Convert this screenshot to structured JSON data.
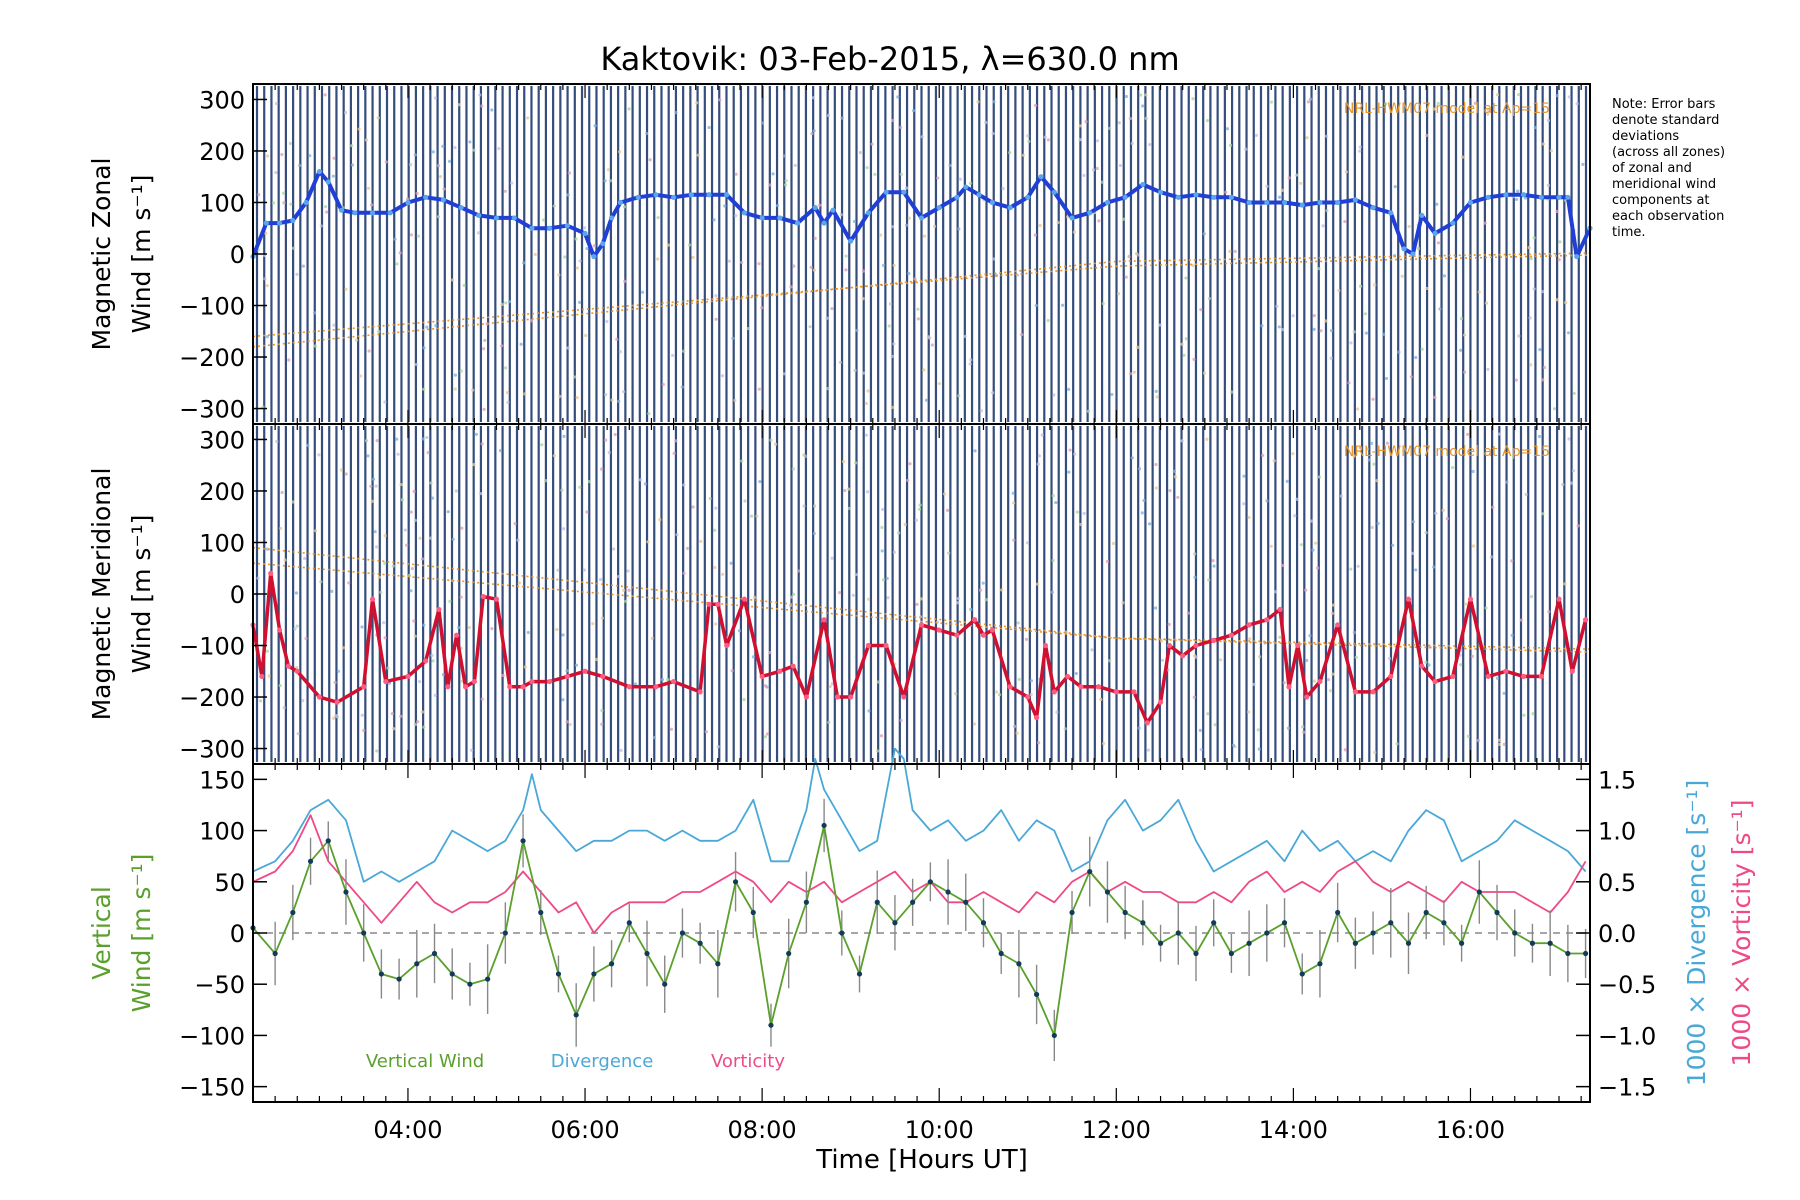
{
  "title": "Kaktovik: 03-Feb-2015, λ=630.0 nm",
  "note_lines": [
    "Note: Error bars",
    "denote standard",
    "deviations",
    "(across all zones)",
    "of zonal and",
    "meridional wind",
    "components at",
    "each observation",
    "time."
  ],
  "model_label": "NRL-HWM07 model at Ap=15",
  "colors": {
    "zonal": "#1f3fd6",
    "zonal_light": "#5aa6ee",
    "meridional": "#d01030",
    "meridional_light": "#ff5c82",
    "vertical": "#5aa02c",
    "divergence": "#4aa8d8",
    "vorticity": "#ee4a88",
    "stripes": "#1f3a6e",
    "model": "#e8962a"
  },
  "chart_data": [
    {
      "type": "line",
      "panel": "zonal",
      "ylabel_lines": [
        "Magnetic Zonal",
        "Wind [m s⁻¹]"
      ],
      "ylim": [
        -330,
        330
      ],
      "yticks": [
        "300",
        "200",
        "100",
        "0",
        "−100",
        "−200",
        "−300"
      ],
      "ytick_values": [
        300,
        200,
        100,
        0,
        -100,
        -200,
        -300
      ],
      "xlim": [
        2.25,
        17.35
      ],
      "series": [
        {
          "x": [
            2.25,
            2.4,
            2.55,
            2.7,
            2.85,
            3.0,
            3.1,
            3.25,
            3.4,
            3.6,
            3.8,
            4.0,
            4.2,
            4.4,
            4.6,
            4.8,
            5.0,
            5.2,
            5.4,
            5.6,
            5.8,
            6.0,
            6.1,
            6.2,
            6.3,
            6.4,
            6.6,
            6.8,
            7.0,
            7.2,
            7.4,
            7.6,
            7.8,
            8.0,
            8.2,
            8.4,
            8.6,
            8.7,
            8.8,
            9.0,
            9.2,
            9.4,
            9.6,
            9.8,
            10.0,
            10.2,
            10.3,
            10.45,
            10.6,
            10.8,
            11.0,
            11.15,
            11.3,
            11.5,
            11.7,
            11.9,
            12.1,
            12.3,
            12.5,
            12.7,
            12.9,
            13.1,
            13.3,
            13.5,
            13.7,
            13.9,
            14.1,
            14.3,
            14.5,
            14.7,
            14.9,
            15.1,
            15.25,
            15.35,
            15.45,
            15.6,
            15.8,
            16.0,
            16.2,
            16.4,
            16.6,
            16.8,
            17.0,
            17.1,
            17.2,
            17.35
          ],
          "y": [
            -5,
            60,
            60,
            65,
            100,
            160,
            140,
            85,
            80,
            80,
            80,
            100,
            110,
            105,
            90,
            75,
            70,
            70,
            50,
            50,
            55,
            40,
            -5,
            20,
            70,
            100,
            110,
            115,
            110,
            115,
            115,
            115,
            80,
            70,
            70,
            60,
            90,
            60,
            85,
            25,
            80,
            120,
            120,
            70,
            90,
            110,
            130,
            115,
            100,
            90,
            110,
            150,
            120,
            70,
            80,
            100,
            110,
            135,
            120,
            110,
            115,
            110,
            110,
            100,
            100,
            100,
            95,
            100,
            100,
            105,
            90,
            80,
            10,
            0,
            75,
            40,
            60,
            100,
            110,
            115,
            115,
            110,
            110,
            110,
            -5,
            50
          ]
        }
      ]
    },
    {
      "type": "line",
      "panel": "meridional",
      "ylabel_lines": [
        "Magnetic Meridional",
        "Wind [m s⁻¹]"
      ],
      "ylim": [
        -330,
        330
      ],
      "yticks": [
        "300",
        "200",
        "100",
        "0",
        "−100",
        "−200",
        "−300"
      ],
      "ytick_values": [
        300,
        200,
        100,
        0,
        -100,
        -200,
        -300
      ],
      "xlim": [
        2.25,
        17.35
      ],
      "series": [
        {
          "x": [
            2.25,
            2.35,
            2.45,
            2.55,
            2.65,
            2.75,
            3.0,
            3.2,
            3.5,
            3.6,
            3.75,
            4.0,
            4.2,
            4.35,
            4.45,
            4.55,
            4.65,
            4.75,
            4.85,
            5.0,
            5.15,
            5.3,
            5.4,
            5.6,
            5.8,
            6.0,
            6.2,
            6.5,
            6.8,
            7.0,
            7.3,
            7.4,
            7.5,
            7.6,
            7.8,
            8.0,
            8.2,
            8.35,
            8.5,
            8.7,
            8.85,
            9.0,
            9.2,
            9.4,
            9.6,
            9.8,
            10.0,
            10.2,
            10.4,
            10.5,
            10.6,
            10.8,
            11.0,
            11.1,
            11.2,
            11.3,
            11.45,
            11.6,
            11.8,
            12.0,
            12.2,
            12.35,
            12.5,
            12.6,
            12.75,
            12.9,
            13.1,
            13.3,
            13.5,
            13.7,
            13.85,
            13.95,
            14.05,
            14.15,
            14.3,
            14.5,
            14.7,
            14.9,
            15.1,
            15.3,
            15.45,
            15.6,
            15.8,
            16.0,
            16.2,
            16.4,
            16.6,
            16.8,
            17.0,
            17.15,
            17.3
          ],
          "y": [
            -60,
            -160,
            40,
            -70,
            -140,
            -150,
            -200,
            -210,
            -180,
            -10,
            -170,
            -160,
            -130,
            -30,
            -180,
            -80,
            -180,
            -170,
            -5,
            -10,
            -180,
            -180,
            -170,
            -170,
            -160,
            -150,
            -160,
            -180,
            -180,
            -170,
            -190,
            -20,
            -20,
            -100,
            -10,
            -160,
            -150,
            -140,
            -200,
            -50,
            -200,
            -200,
            -100,
            -100,
            -200,
            -60,
            -70,
            -80,
            -50,
            -80,
            -70,
            -180,
            -200,
            -240,
            -100,
            -190,
            -160,
            -180,
            -180,
            -190,
            -190,
            -250,
            -210,
            -100,
            -120,
            -100,
            -90,
            -80,
            -60,
            -50,
            -30,
            -180,
            -100,
            -200,
            -170,
            -60,
            -190,
            -190,
            -160,
            -10,
            -140,
            -170,
            -160,
            -10,
            -160,
            -150,
            -160,
            -160,
            -10,
            -150,
            -50
          ]
        }
      ]
    },
    {
      "type": "line",
      "panel": "vertical",
      "ylabel_lines": [
        "Vertical",
        "Wind [m s⁻¹]"
      ],
      "ylabel_right_1": "1000 × Divergence [s⁻¹]",
      "ylabel_right_2": "1000 × Vorticity [s⁻¹]",
      "ylim": [
        -165,
        165
      ],
      "yticks": [
        "150",
        "100",
        "50",
        "0",
        "−50",
        "−100",
        "−150"
      ],
      "ytick_values": [
        150,
        100,
        50,
        0,
        -50,
        -100,
        -150
      ],
      "y2lim": [
        -1.65,
        1.65
      ],
      "y2ticks": [
        "1.5",
        "1.0",
        "0.5",
        "0.0",
        "−0.5",
        "−1.0",
        "−1.5"
      ],
      "y2tick_values": [
        1.5,
        1.0,
        0.5,
        0.0,
        -0.5,
        -1.0,
        -1.5
      ],
      "xlim": [
        2.25,
        17.35
      ],
      "xticks": [
        "04:00",
        "06:00",
        "08:00",
        "10:00",
        "12:00",
        "14:00",
        "16:00"
      ],
      "xtick_values": [
        4,
        6,
        8,
        10,
        12,
        14,
        16
      ],
      "xlabel": "Time [Hours UT]",
      "legend": [
        "Vertical Wind",
        "Divergence",
        "Vorticity"
      ],
      "series": [
        {
          "name": "Vertical Wind",
          "x": [
            2.25,
            2.5,
            2.7,
            2.9,
            3.1,
            3.3,
            3.5,
            3.7,
            3.9,
            4.1,
            4.3,
            4.5,
            4.7,
            4.9,
            5.1,
            5.3,
            5.5,
            5.7,
            5.9,
            6.1,
            6.3,
            6.5,
            6.7,
            6.9,
            7.1,
            7.3,
            7.5,
            7.7,
            7.9,
            8.1,
            8.3,
            8.5,
            8.7,
            8.9,
            9.1,
            9.3,
            9.5,
            9.7,
            9.9,
            10.1,
            10.3,
            10.5,
            10.7,
            10.9,
            11.1,
            11.3,
            11.5,
            11.7,
            11.9,
            12.1,
            12.3,
            12.5,
            12.7,
            12.9,
            13.1,
            13.3,
            13.5,
            13.7,
            13.9,
            14.1,
            14.3,
            14.5,
            14.7,
            14.9,
            15.1,
            15.3,
            15.5,
            15.7,
            15.9,
            16.1,
            16.3,
            16.5,
            16.7,
            16.9,
            17.1,
            17.3
          ],
          "y": [
            5,
            -20,
            20,
            70,
            90,
            40,
            0,
            -40,
            -45,
            -30,
            -20,
            -40,
            -50,
            -45,
            0,
            90,
            20,
            -40,
            -80,
            -40,
            -30,
            10,
            -20,
            -50,
            0,
            -10,
            -30,
            50,
            20,
            -90,
            -20,
            30,
            105,
            0,
            -40,
            30,
            10,
            30,
            50,
            40,
            30,
            10,
            -20,
            -30,
            -60,
            -100,
            20,
            60,
            40,
            20,
            10,
            -10,
            0,
            -20,
            10,
            -20,
            -10,
            0,
            10,
            -40,
            -30,
            20,
            -10,
            0,
            10,
            -10,
            20,
            10,
            -10,
            40,
            20,
            0,
            -10,
            -10,
            -20,
            -20
          ]
        },
        {
          "name": "Divergence",
          "x": [
            2.25,
            2.5,
            2.7,
            2.9,
            3.1,
            3.3,
            3.5,
            3.7,
            3.9,
            4.1,
            4.3,
            4.5,
            4.7,
            4.9,
            5.1,
            5.3,
            5.4,
            5.5,
            5.7,
            5.9,
            6.1,
            6.3,
            6.5,
            6.7,
            6.9,
            7.1,
            7.3,
            7.5,
            7.7,
            7.9,
            8.1,
            8.3,
            8.5,
            8.6,
            8.7,
            8.9,
            9.1,
            9.3,
            9.5,
            9.6,
            9.7,
            9.9,
            10.1,
            10.3,
            10.5,
            10.7,
            10.9,
            11.1,
            11.3,
            11.5,
            11.7,
            11.9,
            12.1,
            12.3,
            12.5,
            12.7,
            12.9,
            13.1,
            13.3,
            13.5,
            13.7,
            13.9,
            14.1,
            14.3,
            14.5,
            14.7,
            14.9,
            15.1,
            15.3,
            15.5,
            15.7,
            15.9,
            16.1,
            16.3,
            16.5,
            16.7,
            16.9,
            17.1,
            17.3
          ],
          "y": [
            0.6,
            0.7,
            0.9,
            1.2,
            1.3,
            1.1,
            0.5,
            0.6,
            0.5,
            0.6,
            0.7,
            1.0,
            0.9,
            0.8,
            0.9,
            1.2,
            1.55,
            1.2,
            1.0,
            0.8,
            0.9,
            0.9,
            1.0,
            1.0,
            0.9,
            1.0,
            0.9,
            0.9,
            1.0,
            1.3,
            0.7,
            0.7,
            1.2,
            1.7,
            1.4,
            1.1,
            0.8,
            0.9,
            1.8,
            1.7,
            1.2,
            1.0,
            1.1,
            0.9,
            1.0,
            1.2,
            0.9,
            1.1,
            1.0,
            0.6,
            0.7,
            1.1,
            1.3,
            1.0,
            1.1,
            1.3,
            0.9,
            0.6,
            0.7,
            0.8,
            0.9,
            0.7,
            1.0,
            0.8,
            0.9,
            0.7,
            0.8,
            0.7,
            1.0,
            1.2,
            1.1,
            0.7,
            0.8,
            0.9,
            1.1,
            1.0,
            0.9,
            0.8,
            0.6
          ]
        },
        {
          "name": "Vorticity",
          "x": [
            2.25,
            2.5,
            2.7,
            2.9,
            3.1,
            3.3,
            3.5,
            3.7,
            3.9,
            4.1,
            4.3,
            4.5,
            4.7,
            4.9,
            5.1,
            5.3,
            5.5,
            5.7,
            5.9,
            6.1,
            6.3,
            6.5,
            6.7,
            6.9,
            7.1,
            7.3,
            7.5,
            7.7,
            7.9,
            8.1,
            8.3,
            8.5,
            8.7,
            8.9,
            9.1,
            9.3,
            9.5,
            9.7,
            9.9,
            10.1,
            10.3,
            10.5,
            10.7,
            10.9,
            11.1,
            11.3,
            11.5,
            11.7,
            11.9,
            12.1,
            12.3,
            12.5,
            12.7,
            12.9,
            13.1,
            13.3,
            13.5,
            13.7,
            13.9,
            14.1,
            14.3,
            14.5,
            14.7,
            14.9,
            15.1,
            15.3,
            15.5,
            15.7,
            15.9,
            16.1,
            16.3,
            16.5,
            16.7,
            16.9,
            17.1,
            17.3
          ],
          "y": [
            0.5,
            0.6,
            0.8,
            1.15,
            0.7,
            0.5,
            0.3,
            0.1,
            0.3,
            0.5,
            0.3,
            0.2,
            0.3,
            0.3,
            0.4,
            0.6,
            0.4,
            0.2,
            0.3,
            0.0,
            0.2,
            0.3,
            0.3,
            0.3,
            0.4,
            0.4,
            0.5,
            0.6,
            0.5,
            0.3,
            0.5,
            0.4,
            0.5,
            0.3,
            0.4,
            0.5,
            0.6,
            0.4,
            0.5,
            0.3,
            0.3,
            0.4,
            0.3,
            0.2,
            0.4,
            0.3,
            0.5,
            0.6,
            0.4,
            0.5,
            0.4,
            0.4,
            0.3,
            0.3,
            0.4,
            0.3,
            0.5,
            0.6,
            0.4,
            0.5,
            0.4,
            0.6,
            0.7,
            0.5,
            0.4,
            0.5,
            0.4,
            0.3,
            0.5,
            0.4,
            0.4,
            0.4,
            0.3,
            0.2,
            0.4,
            0.7
          ]
        }
      ]
    }
  ]
}
